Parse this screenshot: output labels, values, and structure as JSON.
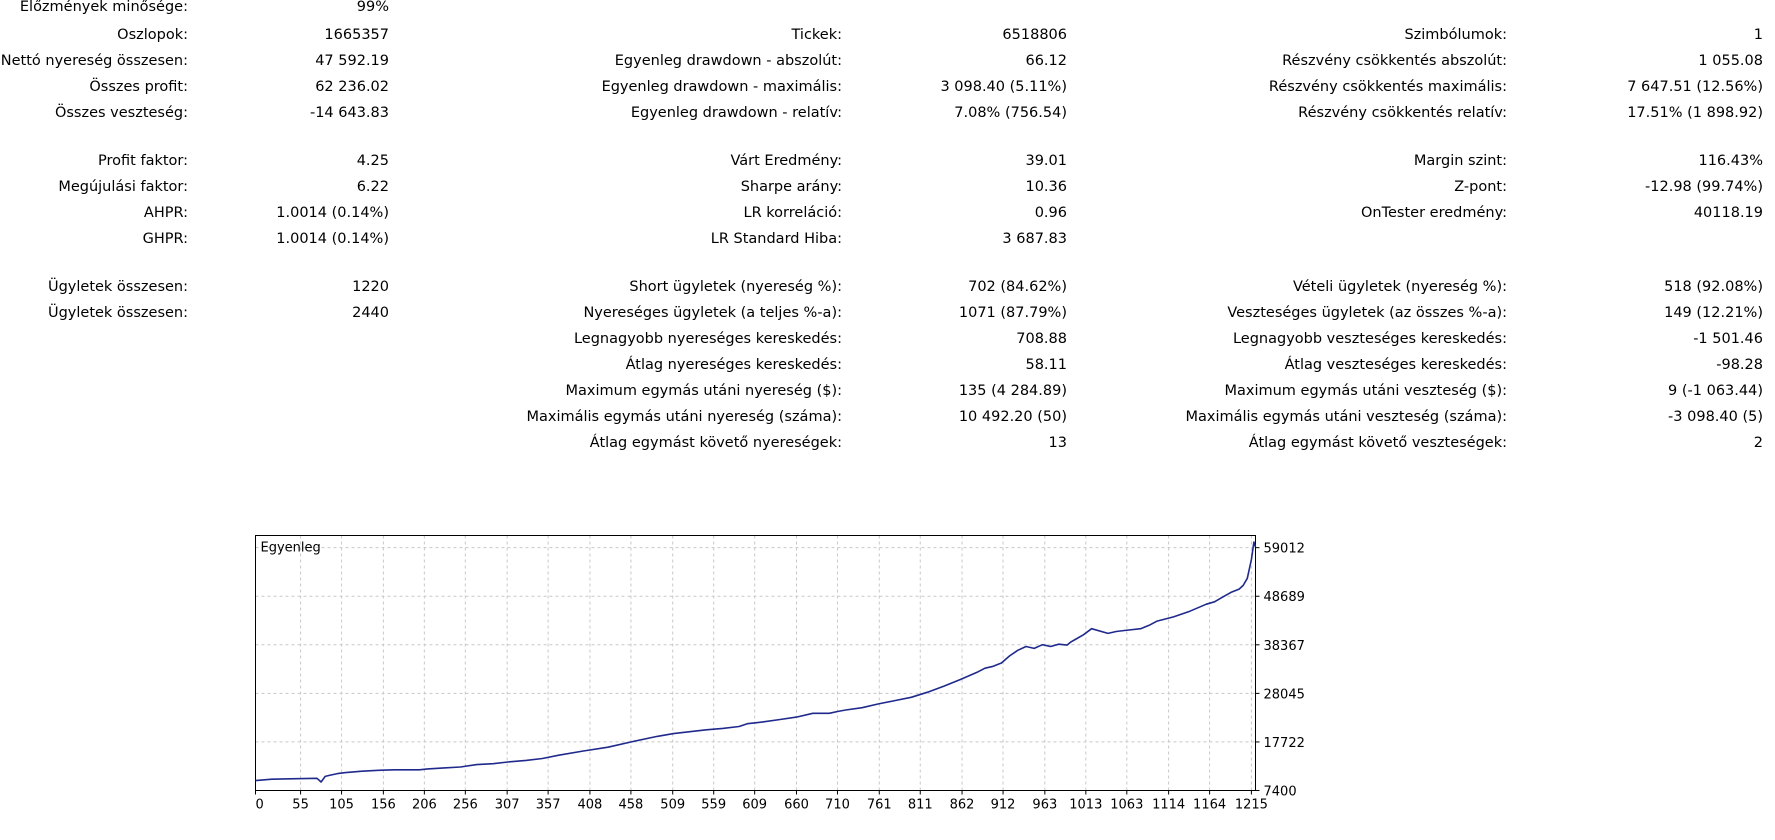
{
  "stats": {
    "history_quality": {
      "label": "Előzmények minősége:",
      "value": "99%"
    },
    "rows": [
      {
        "l1": "Oszlopok:",
        "v1": "1665357",
        "l2": "Tickek:",
        "v2": "6518806",
        "l3": "Szimbólumok:",
        "v3": "1"
      },
      {
        "l1": "Nettó nyereség összesen:",
        "v1": "47 592.19",
        "l2": "Egyenleg drawdown - abszolút:",
        "v2": "66.12",
        "l3": "Részvény csökkentés abszolút:",
        "v3": "1 055.08"
      },
      {
        "l1": "Összes profit:",
        "v1": "62 236.02",
        "l2": "Egyenleg drawdown - maximális:",
        "v2": "3 098.40 (5.11%)",
        "l3": "Részvény csökkentés maximális:",
        "v3": "7 647.51 (12.56%)"
      },
      {
        "l1": "Összes veszteség:",
        "v1": "-14 643.83",
        "l2": "Egyenleg drawdown - relatív:",
        "v2": "7.08% (756.54)",
        "l3": "Részvény csökkentés relatív:",
        "v3": "17.51% (1 898.92)"
      },
      {
        "l1": "Profit faktor:",
        "v1": "4.25",
        "l2": "Várt Eredmény:",
        "v2": "39.01",
        "l3": "Margin szint:",
        "v3": "116.43%"
      },
      {
        "l1": "Megújulási faktor:",
        "v1": "6.22",
        "l2": "Sharpe arány:",
        "v2": "10.36",
        "l3": "Z-pont:",
        "v3": "-12.98 (99.74%)"
      },
      {
        "l1": "AHPR:",
        "v1": "1.0014 (0.14%)",
        "l2": "LR korreláció:",
        "v2": "0.96",
        "l3": "OnTester eredmény:",
        "v3": "40118.19"
      },
      {
        "l1": "GHPR:",
        "v1": "1.0014 (0.14%)",
        "l2": "LR Standard Hiba:",
        "v2": "3 687.83",
        "l3": "",
        "v3": ""
      },
      {
        "l1": "Ügyletek összesen:",
        "v1": "1220",
        "l2": "Short ügyletek (nyereség %):",
        "v2": "702 (84.62%)",
        "l3": "Vételi ügyletek (nyereség %):",
        "v3": "518 (92.08%)"
      },
      {
        "l1": "Ügyletek összesen:",
        "v1": "2440",
        "l2": "Nyereséges ügyletek (a teljes %-a):",
        "v2": "1071 (87.79%)",
        "l3": "Veszteséges ügyletek (az összes %-a):",
        "v3": "149 (12.21%)"
      },
      {
        "l1": "",
        "v1": "",
        "l2": "Legnagyobb nyereséges kereskedés:",
        "v2": "708.88",
        "l3": "Legnagyobb veszteséges kereskedés:",
        "v3": "-1 501.46"
      },
      {
        "l1": "",
        "v1": "",
        "l2": "Átlag nyereséges kereskedés:",
        "v2": "58.11",
        "l3": "Átlag veszteséges kereskedés:",
        "v3": "-98.28"
      },
      {
        "l1": "",
        "v1": "",
        "l2": "Maximum egymás utáni nyereség ($):",
        "v2": "135 (4 284.89)",
        "l3": "Maximum egymás utáni veszteség ($):",
        "v3": "9 (-1 063.44)"
      },
      {
        "l1": "",
        "v1": "",
        "l2": "Maximális egymás utáni nyereség (száma):",
        "v2": "10 492.20 (50)",
        "l3": "Maximális egymás utáni veszteség (száma):",
        "v3": "-3 098.40 (5)"
      },
      {
        "l1": "",
        "v1": "",
        "l2": "Átlag egymást követő nyereségek:",
        "v2": "13",
        "l3": "Átlag egymást követő veszteségek:",
        "v3": "2"
      }
    ]
  },
  "chart_data": {
    "type": "line",
    "title": "Egyenleg",
    "line_color": "#1f2a8c",
    "grid": true,
    "xlim": [
      0,
      1220
    ],
    "ylim": [
      7400,
      61600
    ],
    "x_ticks": [
      "0",
      "55",
      "105",
      "156",
      "206",
      "256",
      "307",
      "357",
      "408",
      "458",
      "509",
      "559",
      "609",
      "660",
      "710",
      "761",
      "811",
      "862",
      "912",
      "963",
      "1013",
      "1063",
      "1114",
      "1164",
      "1215"
    ],
    "x_tick_values": [
      0,
      55,
      105,
      156,
      206,
      256,
      307,
      357,
      408,
      458,
      509,
      559,
      609,
      660,
      710,
      761,
      811,
      862,
      912,
      963,
      1013,
      1063,
      1114,
      1164,
      1215
    ],
    "y_ticks": [
      "59012",
      "48689",
      "38367",
      "28045",
      "17722",
      "7400"
    ],
    "y_tick_values": [
      59012,
      48689,
      38367,
      28045,
      17722,
      7400
    ],
    "series": [
      {
        "name": "",
        "x": [
          0,
          20,
          50,
          75,
          80,
          85,
          90,
          95,
          100,
          110,
          130,
          150,
          170,
          190,
          200,
          210,
          230,
          250,
          270,
          290,
          310,
          330,
          350,
          370,
          400,
          430,
          460,
          490,
          510,
          530,
          550,
          570,
          590,
          600,
          610,
          620,
          640,
          660,
          680,
          700,
          710,
          720,
          740,
          760,
          780,
          800,
          820,
          840,
          860,
          880,
          890,
          900,
          910,
          920,
          930,
          940,
          950,
          960,
          970,
          980,
          990,
          995,
          1000,
          1010,
          1020,
          1040,
          1050,
          1060,
          1080,
          1090,
          1100,
          1120,
          1140,
          1160,
          1170,
          1180,
          1190,
          1200,
          1205,
          1210,
          1215,
          1218,
          1220
        ],
        "values": [
          9500,
          9800,
          9900,
          10000,
          9200,
          10400,
          10600,
          10800,
          11000,
          11200,
          11500,
          11700,
          11800,
          11800,
          11800,
          12000,
          12200,
          12400,
          12900,
          13100,
          13500,
          13800,
          14200,
          14900,
          15800,
          16600,
          17800,
          18900,
          19500,
          19900,
          20300,
          20600,
          21000,
          21600,
          21800,
          22000,
          22500,
          23000,
          23800,
          23800,
          24200,
          24500,
          25000,
          25800,
          26500,
          27200,
          28300,
          29600,
          31000,
          32500,
          33400,
          33800,
          34500,
          36000,
          37200,
          38000,
          37600,
          38400,
          38000,
          38500,
          38300,
          39000,
          39500,
          40500,
          41800,
          40800,
          41200,
          41400,
          41800,
          42500,
          43400,
          44300,
          45500,
          47000,
          47500,
          48500,
          49500,
          50200,
          51000,
          52500,
          56500,
          60200,
          59200
        ]
      }
    ]
  }
}
